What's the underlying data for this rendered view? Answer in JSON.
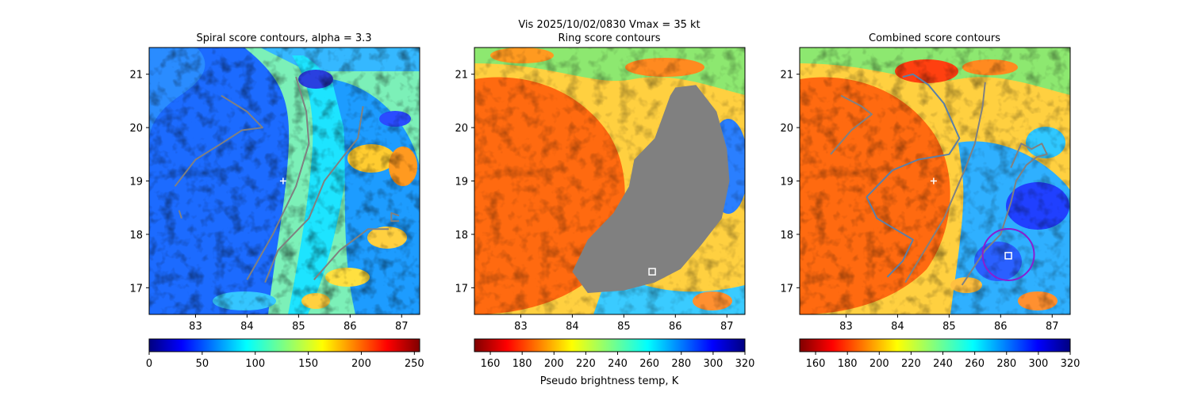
{
  "suptitle": "Vis  2025/10/02/0830    Vmax = 35 kt",
  "colors": {
    "contour": "#808080",
    "contour_blue": "#5a7fa8",
    "marker": "#ffffff",
    "circle": "#8a1dd1"
  },
  "chart_data": [
    {
      "type": "heatmap",
      "title": "Spiral score contours, alpha =  3.3",
      "xlim": [
        82.1,
        87.35
      ],
      "ylim": [
        16.5,
        21.5
      ],
      "xticks": [
        "83",
        "84",
        "85",
        "86",
        "87"
      ],
      "yticks": [
        "17",
        "18",
        "19",
        "20",
        "21"
      ],
      "colormap": "jet",
      "colorbar": {
        "range": [
          0,
          255
        ],
        "ticks": [
          "0",
          "50",
          "100",
          "150",
          "200",
          "250"
        ],
        "label": ""
      },
      "markers": [
        {
          "type": "plus",
          "x": 84.7,
          "y": 19.0
        }
      ],
      "contours": [
        [
          [
            82.6,
            18.9
          ],
          [
            83.0,
            19.4
          ],
          [
            83.5,
            19.7
          ],
          [
            83.9,
            19.95
          ],
          [
            84.3,
            20.0
          ],
          [
            84.0,
            20.3
          ],
          [
            83.5,
            20.6
          ]
        ],
        [
          [
            82.68,
            18.45
          ],
          [
            82.73,
            18.3
          ]
        ],
        [
          [
            84.0,
            17.15
          ],
          [
            84.5,
            18.0
          ],
          [
            84.95,
            18.9
          ],
          [
            85.2,
            19.7
          ],
          [
            85.15,
            20.3
          ],
          [
            84.95,
            20.95
          ]
        ],
        [
          [
            84.35,
            17.1
          ],
          [
            84.6,
            17.7
          ],
          [
            85.2,
            18.3
          ],
          [
            85.5,
            19.0
          ],
          [
            85.9,
            19.5
          ],
          [
            86.15,
            19.8
          ],
          [
            86.25,
            20.4
          ]
        ],
        [
          [
            85.3,
            17.15
          ],
          [
            85.8,
            17.7
          ],
          [
            86.35,
            18.1
          ],
          [
            86.75,
            18.1
          ]
        ],
        [
          [
            86.95,
            18.35
          ],
          [
            86.8,
            18.4
          ],
          [
            86.8,
            18.25
          ],
          [
            86.95,
            18.25
          ]
        ]
      ]
    },
    {
      "type": "heatmap",
      "title": "Ring score contours",
      "xlim": [
        82.1,
        87.35
      ],
      "ylim": [
        16.5,
        21.5
      ],
      "xticks": [
        "83",
        "84",
        "85",
        "86",
        "87"
      ],
      "yticks": [
        "17",
        "18",
        "19",
        "20",
        "21"
      ],
      "colormap": "jet_r",
      "colorbar": {
        "range": [
          150,
          320
        ],
        "ticks": [
          "160",
          "180",
          "200",
          "220",
          "240",
          "260",
          "280",
          "300",
          "320"
        ],
        "label": "Pseudo brightness temp, K"
      },
      "markers": [
        {
          "type": "square",
          "x": 85.55,
          "y": 17.3
        }
      ],
      "filled_region": [
        [
          86.0,
          20.75
        ],
        [
          86.4,
          20.8
        ],
        [
          86.8,
          20.3
        ],
        [
          87.0,
          19.6
        ],
        [
          87.05,
          19.0
        ],
        [
          86.9,
          18.3
        ],
        [
          86.5,
          17.8
        ],
        [
          86.1,
          17.35
        ],
        [
          85.6,
          17.1
        ],
        [
          85.0,
          16.95
        ],
        [
          84.3,
          16.9
        ],
        [
          84.0,
          17.3
        ],
        [
          84.3,
          17.9
        ],
        [
          84.8,
          18.4
        ],
        [
          85.1,
          18.9
        ],
        [
          85.2,
          19.4
        ],
        [
          85.6,
          19.8
        ],
        [
          85.75,
          20.2
        ],
        [
          85.9,
          20.6
        ]
      ]
    },
    {
      "type": "heatmap",
      "title": "Combined score contours",
      "xlim": [
        82.1,
        87.35
      ],
      "ylim": [
        16.5,
        21.5
      ],
      "xticks": [
        "83",
        "84",
        "85",
        "86",
        "87"
      ],
      "yticks": [
        "17",
        "18",
        "19",
        "20",
        "21"
      ],
      "colormap": "jet_r",
      "colorbar": {
        "range": [
          150,
          320
        ],
        "ticks": [
          "160",
          "180",
          "200",
          "220",
          "240",
          "260",
          "280",
          "300",
          "320"
        ],
        "label": ""
      },
      "markers": [
        {
          "type": "plus",
          "x": 84.7,
          "y": 19.0
        },
        {
          "type": "square",
          "x": 86.15,
          "y": 17.6
        }
      ],
      "circle": {
        "x": 86.15,
        "y": 17.62,
        "radius": 0.5
      },
      "contours": [
        [
          [
            82.7,
            19.5
          ],
          [
            83.1,
            19.95
          ],
          [
            83.5,
            20.25
          ],
          [
            83.3,
            20.4
          ],
          [
            82.9,
            20.6
          ]
        ],
        [
          [
            83.8,
            17.2
          ],
          [
            84.1,
            17.5
          ],
          [
            84.3,
            17.9
          ],
          [
            83.6,
            18.3
          ],
          [
            83.4,
            18.7
          ],
          [
            83.9,
            19.2
          ],
          [
            84.4,
            19.4
          ],
          [
            85.0,
            19.5
          ],
          [
            85.2,
            19.8
          ],
          [
            84.9,
            20.45
          ],
          [
            84.6,
            20.8
          ],
          [
            84.3,
            21.0
          ],
          [
            84.1,
            20.95
          ]
        ],
        [
          [
            84.15,
            17.1
          ],
          [
            84.4,
            17.5
          ],
          [
            84.9,
            18.3
          ],
          [
            85.3,
            19.2
          ],
          [
            85.5,
            19.7
          ],
          [
            85.65,
            20.4
          ],
          [
            85.7,
            20.85
          ]
        ],
        [
          [
            85.25,
            17.05
          ],
          [
            85.7,
            17.7
          ],
          [
            86.0,
            18.0
          ],
          [
            86.2,
            18.6
          ],
          [
            86.3,
            19.0
          ],
          [
            86.5,
            19.3
          ],
          [
            86.7,
            19.45
          ],
          [
            86.9,
            19.5
          ],
          [
            86.8,
            19.7
          ],
          [
            86.6,
            19.6
          ],
          [
            86.4,
            19.7
          ],
          [
            86.2,
            19.25
          ]
        ]
      ]
    }
  ]
}
